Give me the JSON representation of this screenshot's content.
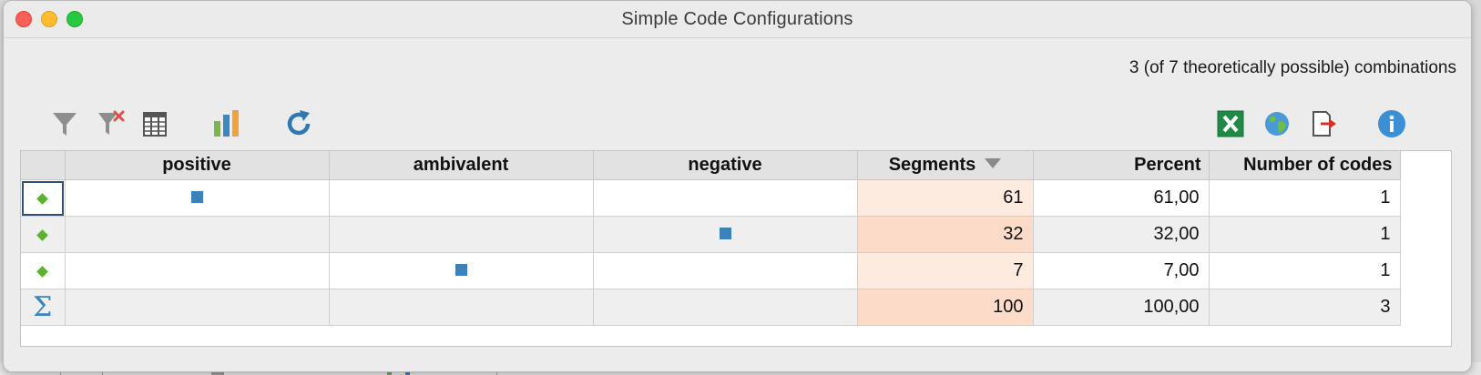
{
  "window": {
    "title": "Simple Code Configurations"
  },
  "summary": "3 (of 7 theoretically possible) combinations",
  "toolbar": {
    "left_icons": [
      "filter-icon",
      "clear-filter-icon",
      "table-columns-icon",
      "bar-chart-icon",
      "refresh-icon"
    ],
    "right_icons": [
      "excel-export-icon",
      "web-export-icon",
      "export-icon",
      "info-icon"
    ]
  },
  "table": {
    "columns": {
      "positive": "positive",
      "ambivalent": "ambivalent",
      "negative": "negative",
      "segments": "Segments",
      "percent": "Percent",
      "number_of_codes": "Number of codes"
    },
    "sort": {
      "column": "Segments",
      "direction": "descending"
    },
    "rows": [
      {
        "positive": true,
        "ambivalent": false,
        "negative": false,
        "segments": "61",
        "percent": "61,00",
        "codes": "1"
      },
      {
        "positive": false,
        "ambivalent": false,
        "negative": true,
        "segments": "32",
        "percent": "32,00",
        "codes": "1"
      },
      {
        "positive": false,
        "ambivalent": true,
        "negative": false,
        "segments": "7",
        "percent": "7,00",
        "codes": "1"
      }
    ],
    "total": {
      "symbol": "Σ",
      "segments": "100",
      "percent": "100,00",
      "codes": "3"
    }
  },
  "colors": {
    "marker": "#3a82b8",
    "row_diamond": "#5cb130",
    "segments_highlight": "#fdebdf"
  }
}
